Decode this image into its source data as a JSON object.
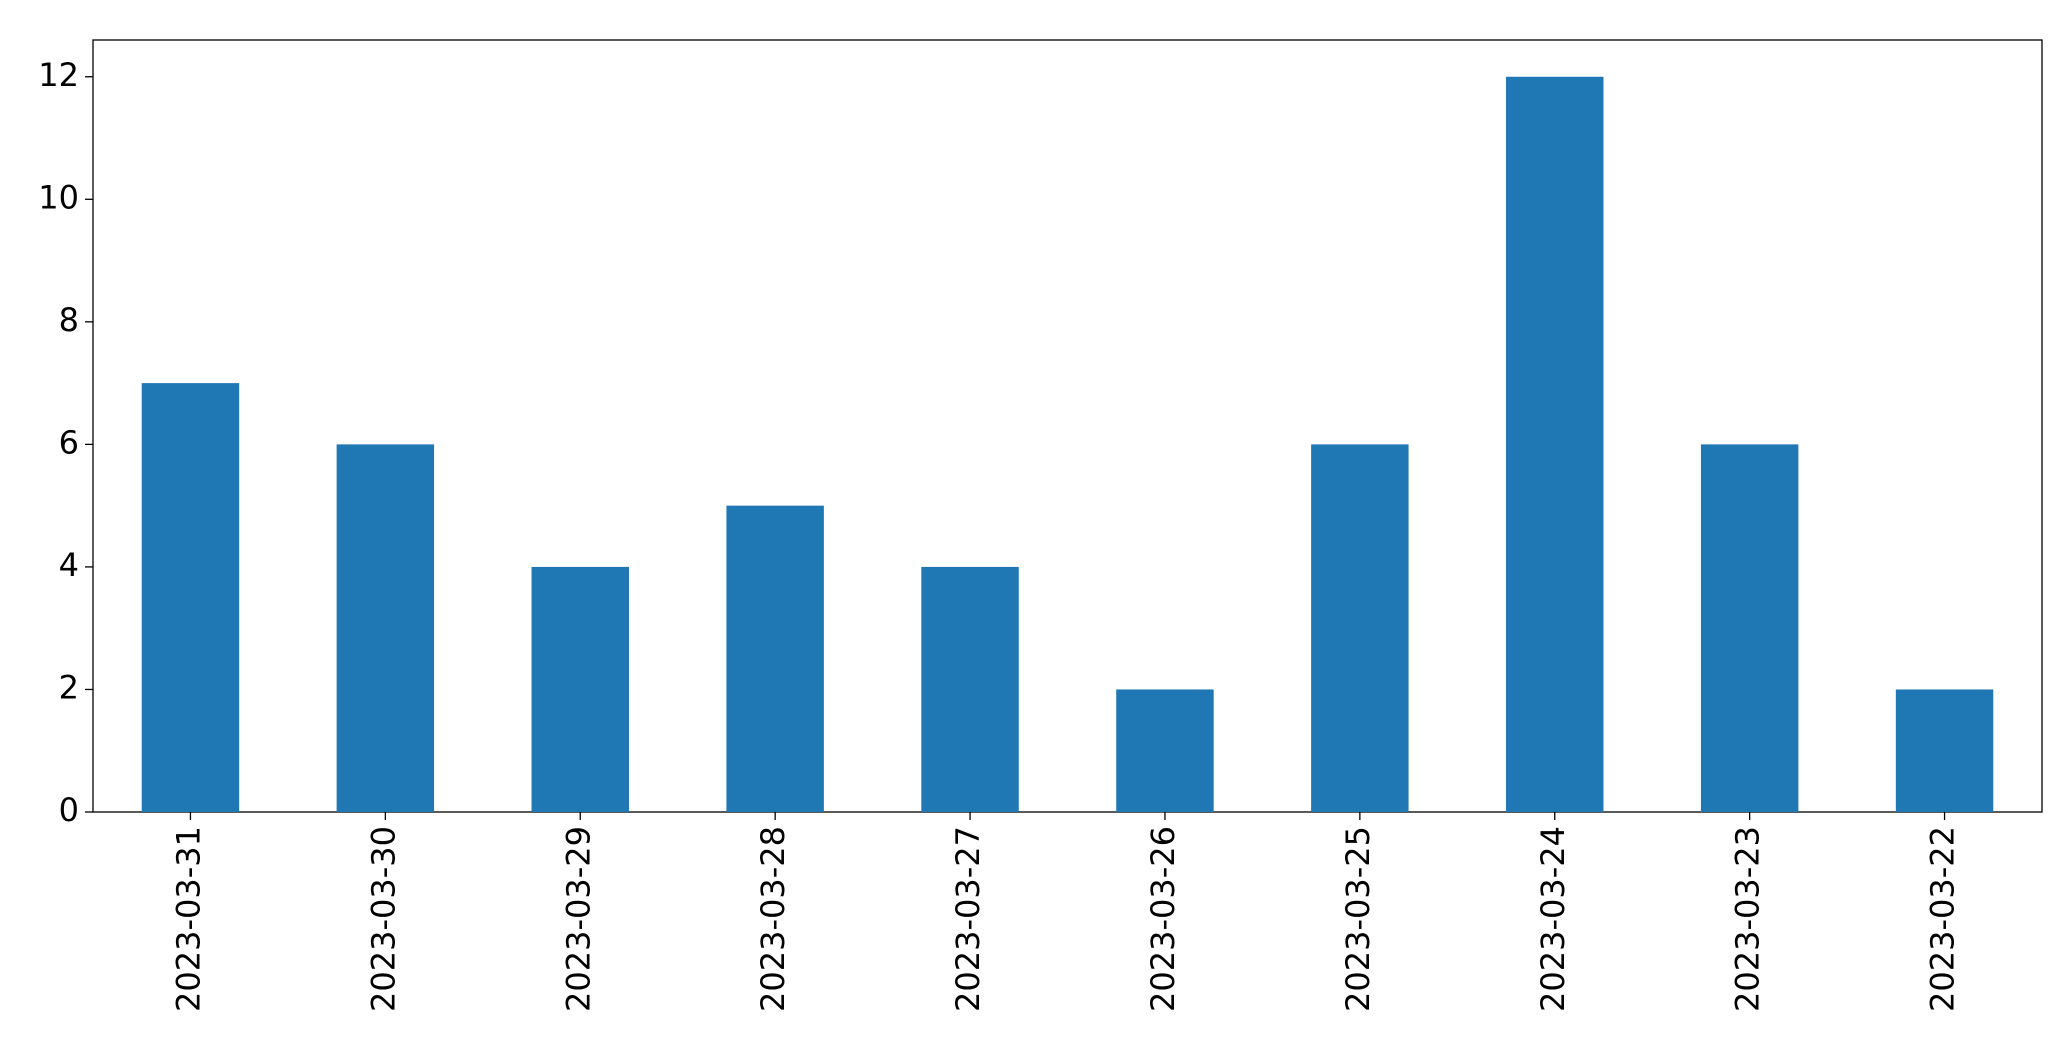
{
  "chart_data": {
    "type": "bar",
    "categories": [
      "2023-03-31",
      "2023-03-30",
      "2023-03-29",
      "2023-03-28",
      "2023-03-27",
      "2023-03-26",
      "2023-03-25",
      "2023-03-24",
      "2023-03-23",
      "2023-03-22"
    ],
    "values": [
      7,
      6,
      4,
      5,
      4,
      2,
      6,
      12,
      6,
      2
    ],
    "color": "#1f77b4",
    "ylim": [
      0,
      12.6
    ],
    "yticks": [
      0,
      2,
      4,
      6,
      8,
      10,
      12
    ],
    "grid": false
  }
}
